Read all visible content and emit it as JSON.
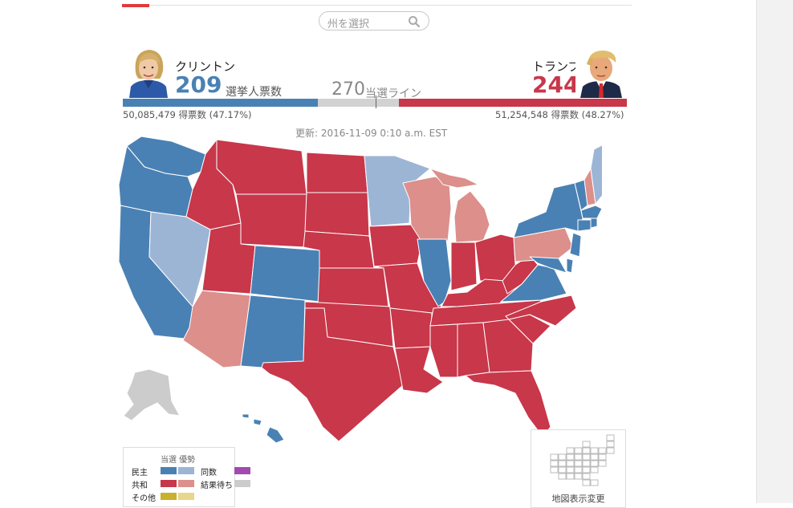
{
  "search": {
    "placeholder": "州を選択"
  },
  "clinton": {
    "name": "クリントン",
    "electoral_votes": "209",
    "ev_label": "選挙人票数",
    "popular": "50,085,479 得票数 (47.17%)"
  },
  "trump": {
    "name": "トランプ",
    "electoral_votes": "244",
    "popular": "51,254,548 得票数 (48.27%)"
  },
  "threshold": {
    "value": "270",
    "label": "当選ライン"
  },
  "updated": "更新: 2016-11-09 0:10 a.m. EST",
  "legend": {
    "title": "当選 優勢",
    "dem": "民主",
    "rep": "共和",
    "other": "その他",
    "tie": "同数",
    "pending": "結果待ち"
  },
  "map_toggle": {
    "label": "地図表示変更"
  },
  "colors": {
    "dem_win": "#4a81b4",
    "dem_lean": "#9db5d5",
    "rep_win": "#c8374a",
    "rep_lean": "#dc8f8b",
    "other_win": "#c9b02d",
    "other_lean": "#e8d68a",
    "tie": "#a24ab0",
    "pending": "#cccccc",
    "bar_gray": "#d2d2d2"
  }
}
